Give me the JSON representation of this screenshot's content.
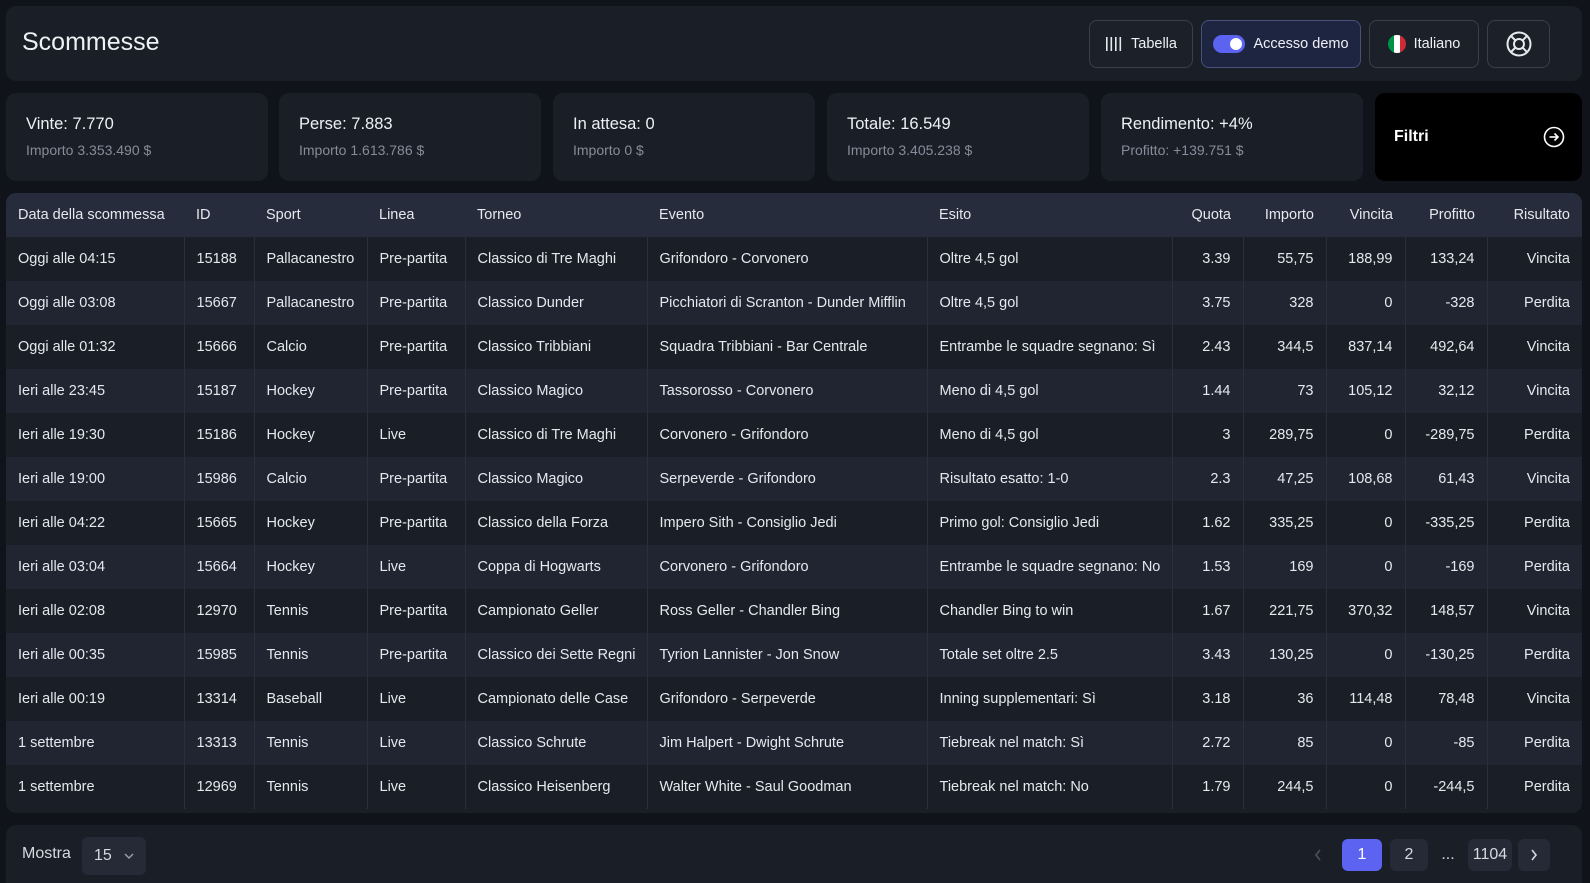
{
  "header": {
    "title": "Scommesse",
    "table_button": "Tabella",
    "demo_button": "Accesso demo",
    "language_button": "Italiano",
    "flag_colors": [
      "#009246",
      "#ffffff",
      "#ce2b37"
    ],
    "support_icon": "lifebuoy-icon"
  },
  "stats": [
    {
      "title": "Vinte: 7.770",
      "sub": "Importo 3.353.490 $"
    },
    {
      "title": "Perse: 7.883",
      "sub": "Importo 1.613.786 $"
    },
    {
      "title": "In attesa: 0",
      "sub": "Importo 0 $"
    },
    {
      "title": "Totale: 16.549",
      "sub": "Importo 3.405.238 $"
    },
    {
      "title": "Rendimento: +4%",
      "sub": "Profitto: +139.751 $"
    }
  ],
  "filters": {
    "label": "Filtri",
    "icon": "arrow-right-circle-icon"
  },
  "table": {
    "columns": [
      "Data della scommessa",
      "ID",
      "Sport",
      "Linea",
      "Torneo",
      "Evento",
      "Esito",
      "Quota",
      "Importo",
      "Vincita",
      "Profitto",
      "Risultato"
    ],
    "rows": [
      [
        "Oggi alle 04:15",
        "15188",
        "Pallacanestro",
        "Pre-partita",
        "Classico di Tre Maghi",
        "Grifondoro - Corvonero",
        "Oltre 4,5 gol",
        "3.39",
        "55,75",
        "188,99",
        "133,24",
        "Vincita"
      ],
      [
        "Oggi alle 03:08",
        "15667",
        "Pallacanestro",
        "Pre-partita",
        "Classico Dunder",
        "Picchiatori di Scranton - Dunder Mifflin",
        "Oltre 4,5 gol",
        "3.75",
        "328",
        "0",
        "-328",
        "Perdita"
      ],
      [
        "Oggi alle 01:32",
        "15666",
        "Calcio",
        "Pre-partita",
        "Classico Tribbiani",
        "Squadra Tribbiani - Bar Centrale",
        "Entrambe le squadre segnano: Sì",
        "2.43",
        "344,5",
        "837,14",
        "492,64",
        "Vincita"
      ],
      [
        "Ieri alle 23:45",
        "15187",
        "Hockey",
        "Pre-partita",
        "Classico Magico",
        "Tassorosso - Corvonero",
        "Meno di 4,5 gol",
        "1.44",
        "73",
        "105,12",
        "32,12",
        "Vincita"
      ],
      [
        "Ieri alle 19:30",
        "15186",
        "Hockey",
        "Live",
        "Classico di Tre Maghi",
        "Corvonero - Grifondoro",
        "Meno di 4,5 gol",
        "3",
        "289,75",
        "0",
        "-289,75",
        "Perdita"
      ],
      [
        "Ieri alle 19:00",
        "15986",
        "Calcio",
        "Pre-partita",
        "Classico Magico",
        "Serpeverde - Grifondoro",
        "Risultato esatto: 1-0",
        "2.3",
        "47,25",
        "108,68",
        "61,43",
        "Vincita"
      ],
      [
        "Ieri alle 04:22",
        "15665",
        "Hockey",
        "Pre-partita",
        "Classico della Forza",
        "Impero Sith - Consiglio Jedi",
        "Primo gol: Consiglio Jedi",
        "1.62",
        "335,25",
        "0",
        "-335,25",
        "Perdita"
      ],
      [
        "Ieri alle 03:04",
        "15664",
        "Hockey",
        "Live",
        "Coppa di Hogwarts",
        "Corvonero - Grifondoro",
        "Entrambe le squadre segnano: No",
        "1.53",
        "169",
        "0",
        "-169",
        "Perdita"
      ],
      [
        "Ieri alle 02:08",
        "12970",
        "Tennis",
        "Pre-partita",
        "Campionato Geller",
        "Ross Geller - Chandler Bing",
        "Chandler Bing to win",
        "1.67",
        "221,75",
        "370,32",
        "148,57",
        "Vincita"
      ],
      [
        "Ieri alle 00:35",
        "15985",
        "Tennis",
        "Pre-partita",
        "Classico dei Sette Regni",
        "Tyrion Lannister - Jon Snow",
        "Totale set oltre 2.5",
        "3.43",
        "130,25",
        "0",
        "-130,25",
        "Perdita"
      ],
      [
        "Ieri alle 00:19",
        "13314",
        "Baseball",
        "Live",
        "Campionato delle Case",
        "Grifondoro - Serpeverde",
        "Inning supplementari: Sì",
        "3.18",
        "36",
        "114,48",
        "78,48",
        "Vincita"
      ],
      [
        "1 settembre",
        "13313",
        "Tennis",
        "Live",
        "Classico Schrute",
        "Jim Halpert - Dwight Schrute",
        "Tiebreak nel match: Sì",
        "2.72",
        "85",
        "0",
        "-85",
        "Perdita"
      ],
      [
        "1 settembre",
        "12969",
        "Tennis",
        "Live",
        "Classico Heisenberg",
        "Walter White - Saul Goodman",
        "Tiebreak nel match: No",
        "1.79",
        "244,5",
        "0",
        "-244,5",
        "Perdita"
      ]
    ]
  },
  "footer": {
    "show_label": "Mostra",
    "page_size": "15",
    "pages": {
      "first": "1",
      "second": "2",
      "ellipsis": "...",
      "last": "1104"
    }
  },
  "colors": {
    "accent": "#5b63f0"
  }
}
